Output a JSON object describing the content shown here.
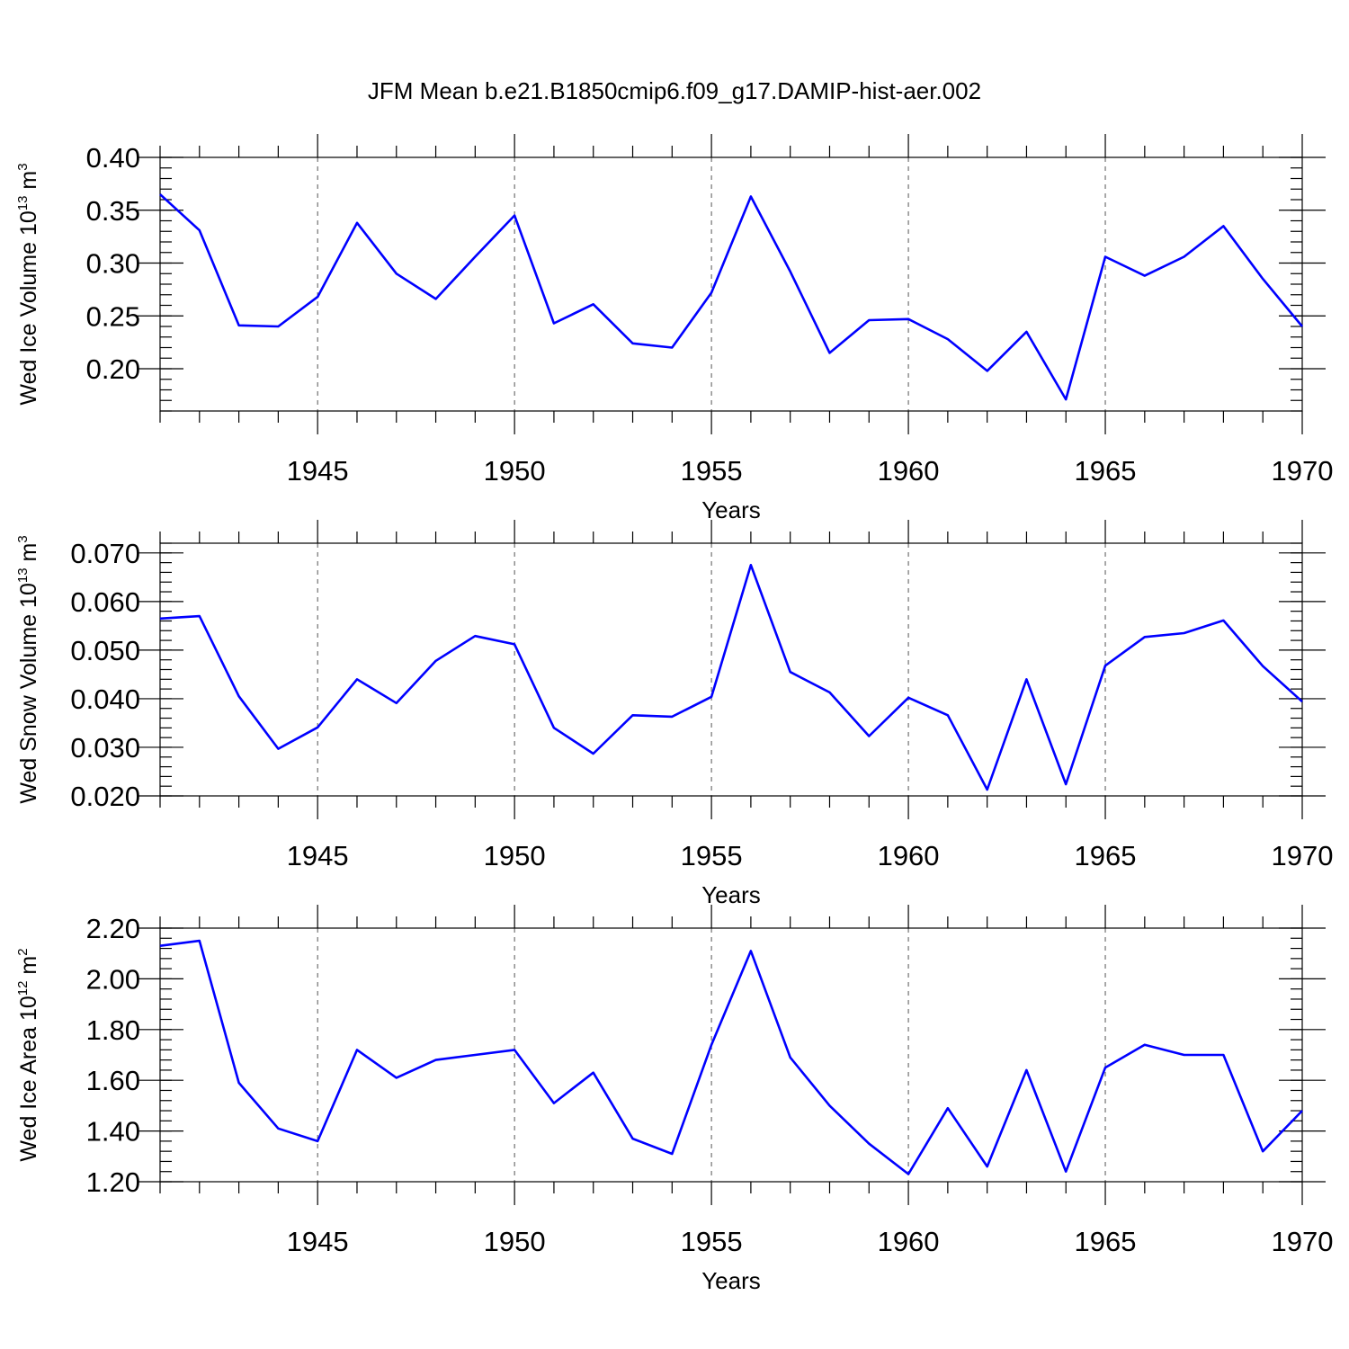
{
  "title": "JFM Mean b.e21.B1850cmip6.f09_g17.DAMIP-hist-aer.002",
  "colors": {
    "series": "#0000ff",
    "axes": "#000000",
    "grid": "#555555"
  },
  "chart_data": [
    {
      "type": "line",
      "title": "JFM Mean b.e21.B1850cmip6.f09_g17.DAMIP-hist-aer.002",
      "xlabel": "Years",
      "ylabel": {
        "main": "Wed Ice Volume 10",
        "sup": "13",
        "unit": " m",
        "unit_sup": "3"
      },
      "x": [
        1941,
        1942,
        1943,
        1944,
        1945,
        1946,
        1947,
        1948,
        1949,
        1950,
        1951,
        1952,
        1953,
        1954,
        1955,
        1956,
        1957,
        1958,
        1959,
        1960,
        1961,
        1962,
        1963,
        1964,
        1965,
        1966,
        1967,
        1968,
        1969,
        1970
      ],
      "series": [
        {
          "name": "Wed Ice Volume",
          "values": [
            0.365,
            0.331,
            0.241,
            0.24,
            0.268,
            0.338,
            0.29,
            0.266,
            0.306,
            0.345,
            0.243,
            0.261,
            0.224,
            0.22,
            0.272,
            0.363,
            0.292,
            0.215,
            0.246,
            0.247,
            0.228,
            0.198,
            0.235,
            0.171,
            0.306,
            0.288,
            0.306,
            0.335,
            0.285,
            0.24
          ]
        }
      ],
      "xlim": [
        1941,
        1970
      ],
      "ylim": [
        0.16,
        0.4
      ],
      "yticks": [
        0.2,
        0.25,
        0.3,
        0.35,
        0.4
      ],
      "ytick_labels": [
        "0.20",
        "0.25",
        "0.30",
        "0.35",
        "0.40"
      ],
      "yminor_step": 0.01,
      "xticks": [
        1945,
        1950,
        1955,
        1960,
        1965,
        1970
      ],
      "xtick_labels": [
        "1945",
        "1950",
        "1955",
        "1960",
        "1965",
        "1970"
      ],
      "grid": "x-dashed"
    },
    {
      "type": "line",
      "xlabel": "Years",
      "ylabel": {
        "main": "Wed Snow Volume 10",
        "sup": "13",
        "unit": " m",
        "unit_sup": "3"
      },
      "x": [
        1941,
        1942,
        1943,
        1944,
        1945,
        1946,
        1947,
        1948,
        1949,
        1950,
        1951,
        1952,
        1953,
        1954,
        1955,
        1956,
        1957,
        1958,
        1959,
        1960,
        1961,
        1962,
        1963,
        1964,
        1965,
        1966,
        1967,
        1968,
        1969,
        1970
      ],
      "series": [
        {
          "name": "Wed Snow Volume",
          "values": [
            0.0565,
            0.057,
            0.0405,
            0.0297,
            0.0341,
            0.044,
            0.0391,
            0.0478,
            0.0529,
            0.0512,
            0.034,
            0.0287,
            0.0366,
            0.0363,
            0.0404,
            0.0675,
            0.0455,
            0.0413,
            0.0323,
            0.0402,
            0.0366,
            0.0213,
            0.044,
            0.0224,
            0.0468,
            0.0527,
            0.0535,
            0.0561,
            0.0467,
            0.0394
          ]
        }
      ],
      "xlim": [
        1941,
        1970
      ],
      "ylim": [
        0.02,
        0.072
      ],
      "yticks": [
        0.02,
        0.03,
        0.04,
        0.05,
        0.06,
        0.07
      ],
      "ytick_labels": [
        "0.020",
        "0.030",
        "0.040",
        "0.050",
        "0.060",
        "0.070"
      ],
      "yminor_step": 0.002,
      "xticks": [
        1945,
        1950,
        1955,
        1960,
        1965,
        1970
      ],
      "xtick_labels": [
        "1945",
        "1950",
        "1955",
        "1960",
        "1965",
        "1970"
      ],
      "grid": "x-dashed"
    },
    {
      "type": "line",
      "xlabel": "Years",
      "ylabel": {
        "main": "Wed Ice Area 10",
        "sup": "12",
        "unit": " m",
        "unit_sup": "2"
      },
      "x": [
        1941,
        1942,
        1943,
        1944,
        1945,
        1946,
        1947,
        1948,
        1949,
        1950,
        1951,
        1952,
        1953,
        1954,
        1955,
        1956,
        1957,
        1958,
        1959,
        1960,
        1961,
        1962,
        1963,
        1964,
        1965,
        1966,
        1967,
        1968,
        1969,
        1970
      ],
      "series": [
        {
          "name": "Wed Ice Area",
          "values": [
            2.13,
            2.15,
            1.59,
            1.41,
            1.36,
            1.72,
            1.61,
            1.68,
            1.7,
            1.72,
            1.51,
            1.63,
            1.37,
            1.31,
            1.74,
            2.11,
            1.69,
            1.5,
            1.35,
            1.23,
            1.49,
            1.26,
            1.64,
            1.24,
            1.65,
            1.74,
            1.7,
            1.7,
            1.32,
            1.48
          ]
        }
      ],
      "xlim": [
        1941,
        1970
      ],
      "ylim": [
        1.2,
        2.2
      ],
      "yticks": [
        1.2,
        1.4,
        1.6,
        1.8,
        2.0,
        2.2
      ],
      "ytick_labels": [
        "1.20",
        "1.40",
        "1.60",
        "1.80",
        "2.00",
        "2.20"
      ],
      "yminor_step": 0.04,
      "xticks": [
        1945,
        1950,
        1955,
        1960,
        1965,
        1970
      ],
      "xtick_labels": [
        "1945",
        "1950",
        "1955",
        "1960",
        "1965",
        "1970"
      ],
      "grid": "x-dashed"
    }
  ]
}
